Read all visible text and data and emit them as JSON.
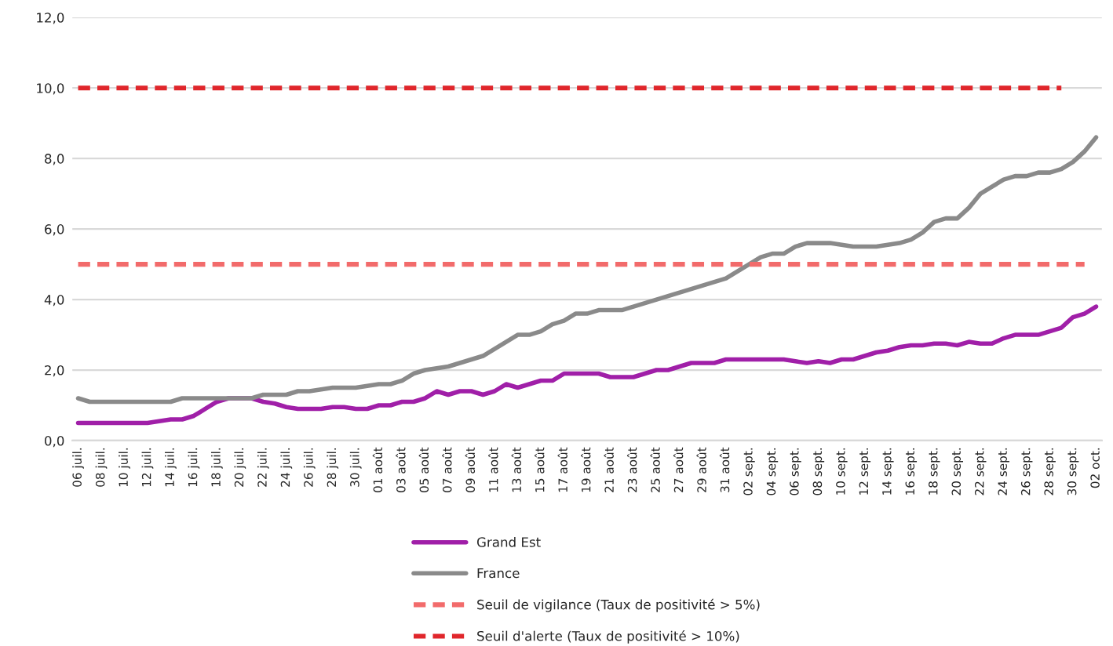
{
  "chart_data": {
    "type": "line",
    "categories": [
      "06 juil.",
      null,
      "08 juil.",
      null,
      "10 juil.",
      null,
      "12 juil.",
      null,
      "14 juil.",
      null,
      "16 juil.",
      null,
      "18 juil.",
      null,
      "20 juil.",
      null,
      "22 juil.",
      null,
      "24 juil.",
      null,
      "26 juil.",
      null,
      "28 juil.",
      null,
      "30 juil.",
      null,
      "01 août",
      null,
      "03 août",
      null,
      "05 août",
      null,
      "07 août",
      null,
      "09 août",
      null,
      "11 août",
      null,
      "13 août",
      null,
      "15 août",
      null,
      "17 août",
      null,
      "19 août",
      null,
      "21 août",
      null,
      "23 août",
      null,
      "25 août",
      null,
      "27 août",
      null,
      "29 août",
      null,
      "31 août",
      null,
      "02 sept.",
      null,
      "04 sept.",
      null,
      "06 sept.",
      null,
      "08 sept.",
      null,
      "10 sept.",
      null,
      "12 sept.",
      null,
      "14 sept.",
      null,
      "16 sept.",
      null,
      "18 sept.",
      null,
      "20 sept.",
      null,
      "22 sept.",
      null,
      "24 sept.",
      null,
      "26 sept.",
      null,
      "28 sept.",
      null,
      "30 sept.",
      null,
      "02 oct."
    ],
    "series": [
      {
        "name": "Grand Est",
        "color": "#a01fa8",
        "line_style": "solid",
        "values": [
          0.5,
          0.5,
          0.5,
          0.5,
          0.5,
          0.5,
          0.5,
          0.55,
          0.6,
          0.6,
          0.7,
          0.9,
          1.1,
          1.2,
          1.2,
          1.2,
          1.1,
          1.05,
          0.95,
          0.9,
          0.9,
          0.9,
          0.95,
          0.95,
          0.9,
          0.9,
          1.0,
          1.0,
          1.1,
          1.1,
          1.2,
          1.4,
          1.3,
          1.4,
          1.4,
          1.3,
          1.4,
          1.6,
          1.5,
          1.6,
          1.7,
          1.7,
          1.9,
          1.9,
          1.9,
          1.9,
          1.8,
          1.8,
          1.8,
          1.9,
          2.0,
          2.0,
          2.1,
          2.2,
          2.2,
          2.2,
          2.3,
          2.3,
          2.3,
          2.3,
          2.3,
          2.3,
          2.25,
          2.2,
          2.25,
          2.2,
          2.3,
          2.3,
          2.4,
          2.5,
          2.55,
          2.65,
          2.7,
          2.7,
          2.75,
          2.75,
          2.7,
          2.8,
          2.75,
          2.75,
          2.9,
          3.0,
          3.0,
          3.0,
          3.1,
          3.2,
          3.5,
          3.6,
          3.8
        ]
      },
      {
        "name": "France",
        "color": "#8a8a8a",
        "line_style": "solid",
        "values": [
          1.2,
          1.1,
          1.1,
          1.1,
          1.1,
          1.1,
          1.1,
          1.1,
          1.1,
          1.2,
          1.2,
          1.2,
          1.2,
          1.2,
          1.2,
          1.2,
          1.3,
          1.3,
          1.3,
          1.4,
          1.4,
          1.45,
          1.5,
          1.5,
          1.5,
          1.55,
          1.6,
          1.6,
          1.7,
          1.9,
          2.0,
          2.05,
          2.1,
          2.2,
          2.3,
          2.4,
          2.6,
          2.8,
          3.0,
          3.0,
          3.1,
          3.3,
          3.4,
          3.6,
          3.6,
          3.7,
          3.7,
          3.7,
          3.8,
          3.9,
          4.0,
          4.1,
          4.2,
          4.3,
          4.4,
          4.5,
          4.6,
          4.8,
          5.0,
          5.2,
          5.3,
          5.3,
          5.5,
          5.6,
          5.6,
          5.6,
          5.55,
          5.5,
          5.5,
          5.5,
          5.55,
          5.6,
          5.7,
          5.9,
          6.2,
          6.3,
          6.3,
          6.6,
          7.0,
          7.2,
          7.4,
          7.5,
          7.5,
          7.6,
          7.6,
          7.7,
          7.9,
          8.2,
          8.6
        ]
      },
      {
        "name": "Seuil de vigilance (Taux de positivité > 5%)",
        "color": "#f26b6b",
        "line_style": "dashed",
        "values": [
          5,
          5,
          5,
          5,
          5,
          5,
          5,
          5,
          5,
          5,
          5,
          5,
          5,
          5,
          5,
          5,
          5,
          5,
          5,
          5,
          5,
          5,
          5,
          5,
          5,
          5,
          5,
          5,
          5,
          5,
          5,
          5,
          5,
          5,
          5,
          5,
          5,
          5,
          5,
          5,
          5,
          5,
          5,
          5,
          5,
          5,
          5,
          5,
          5,
          5,
          5,
          5,
          5,
          5,
          5,
          5,
          5,
          5,
          5,
          5,
          5,
          5,
          5,
          5,
          5,
          5,
          5,
          5,
          5,
          5,
          5,
          5,
          5,
          5,
          5,
          5,
          5,
          5,
          5,
          5,
          5,
          5,
          5,
          5,
          5,
          5,
          5,
          5,
          null
        ]
      },
      {
        "name": "Seuil d'alerte (Taux de positivité > 10%)",
        "color": "#e0262b",
        "line_style": "dashed",
        "values": [
          10,
          10,
          10,
          10,
          10,
          10,
          10,
          10,
          10,
          10,
          10,
          10,
          10,
          10,
          10,
          10,
          10,
          10,
          10,
          10,
          10,
          10,
          10,
          10,
          10,
          10,
          10,
          10,
          10,
          10,
          10,
          10,
          10,
          10,
          10,
          10,
          10,
          10,
          10,
          10,
          10,
          10,
          10,
          10,
          10,
          10,
          10,
          10,
          10,
          10,
          10,
          10,
          10,
          10,
          10,
          10,
          10,
          10,
          10,
          10,
          10,
          10,
          10,
          10,
          10,
          10,
          10,
          10,
          10,
          10,
          10,
          10,
          10,
          10,
          10,
          10,
          10,
          10,
          10,
          10,
          10,
          10,
          10,
          10,
          10,
          10,
          null,
          null,
          null
        ]
      }
    ],
    "ylim": [
      0,
      12
    ],
    "yticks": [
      {
        "value": 0,
        "label": "0,0"
      },
      {
        "value": 2,
        "label": "2,0"
      },
      {
        "value": 4,
        "label": "4,0"
      },
      {
        "value": 6,
        "label": "6,0"
      },
      {
        "value": 8,
        "label": "8,0"
      },
      {
        "value": 10,
        "label": "10,0"
      },
      {
        "value": 12,
        "label": "12,0"
      }
    ],
    "grid": "y",
    "legend": "bottom"
  }
}
